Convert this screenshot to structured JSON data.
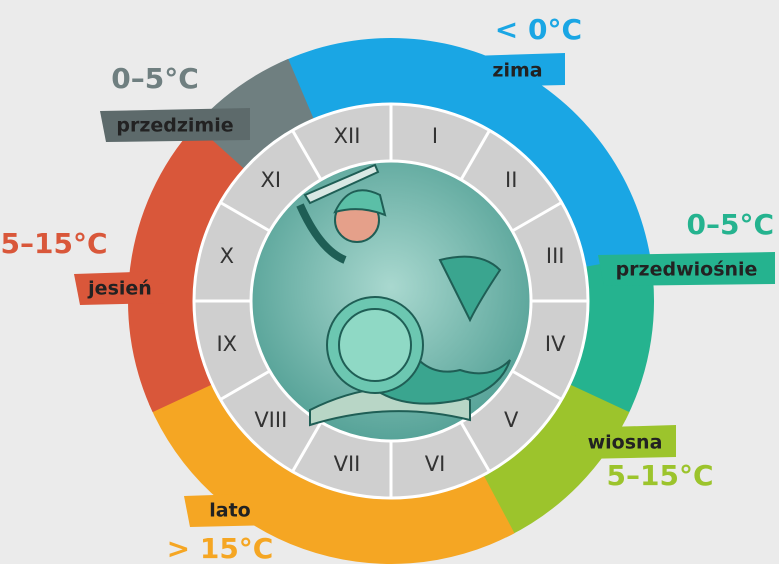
{
  "months": [
    "I",
    "II",
    "III",
    "IV",
    "V",
    "VI",
    "VII",
    "VIII",
    "IX",
    "X",
    "XI",
    "XII"
  ],
  "seasons": [
    {
      "name": "zima",
      "temperature": "< 0°C",
      "color": "#1aa6e4"
    },
    {
      "name": "przedwiośnie",
      "temperature": "0–5°C",
      "color": "#25b38f"
    },
    {
      "name": "wiosna",
      "temperature": "5–15°C",
      "color": "#9cc42c"
    },
    {
      "name": "lato",
      "temperature": "> 15°C",
      "color": "#f5a623"
    },
    {
      "name": "jesień",
      "temperature": "5–15°C",
      "color": "#d9573a"
    },
    {
      "name": "przedzimie",
      "temperature": "0–5°C",
      "color": "#6f7f80"
    }
  ]
}
